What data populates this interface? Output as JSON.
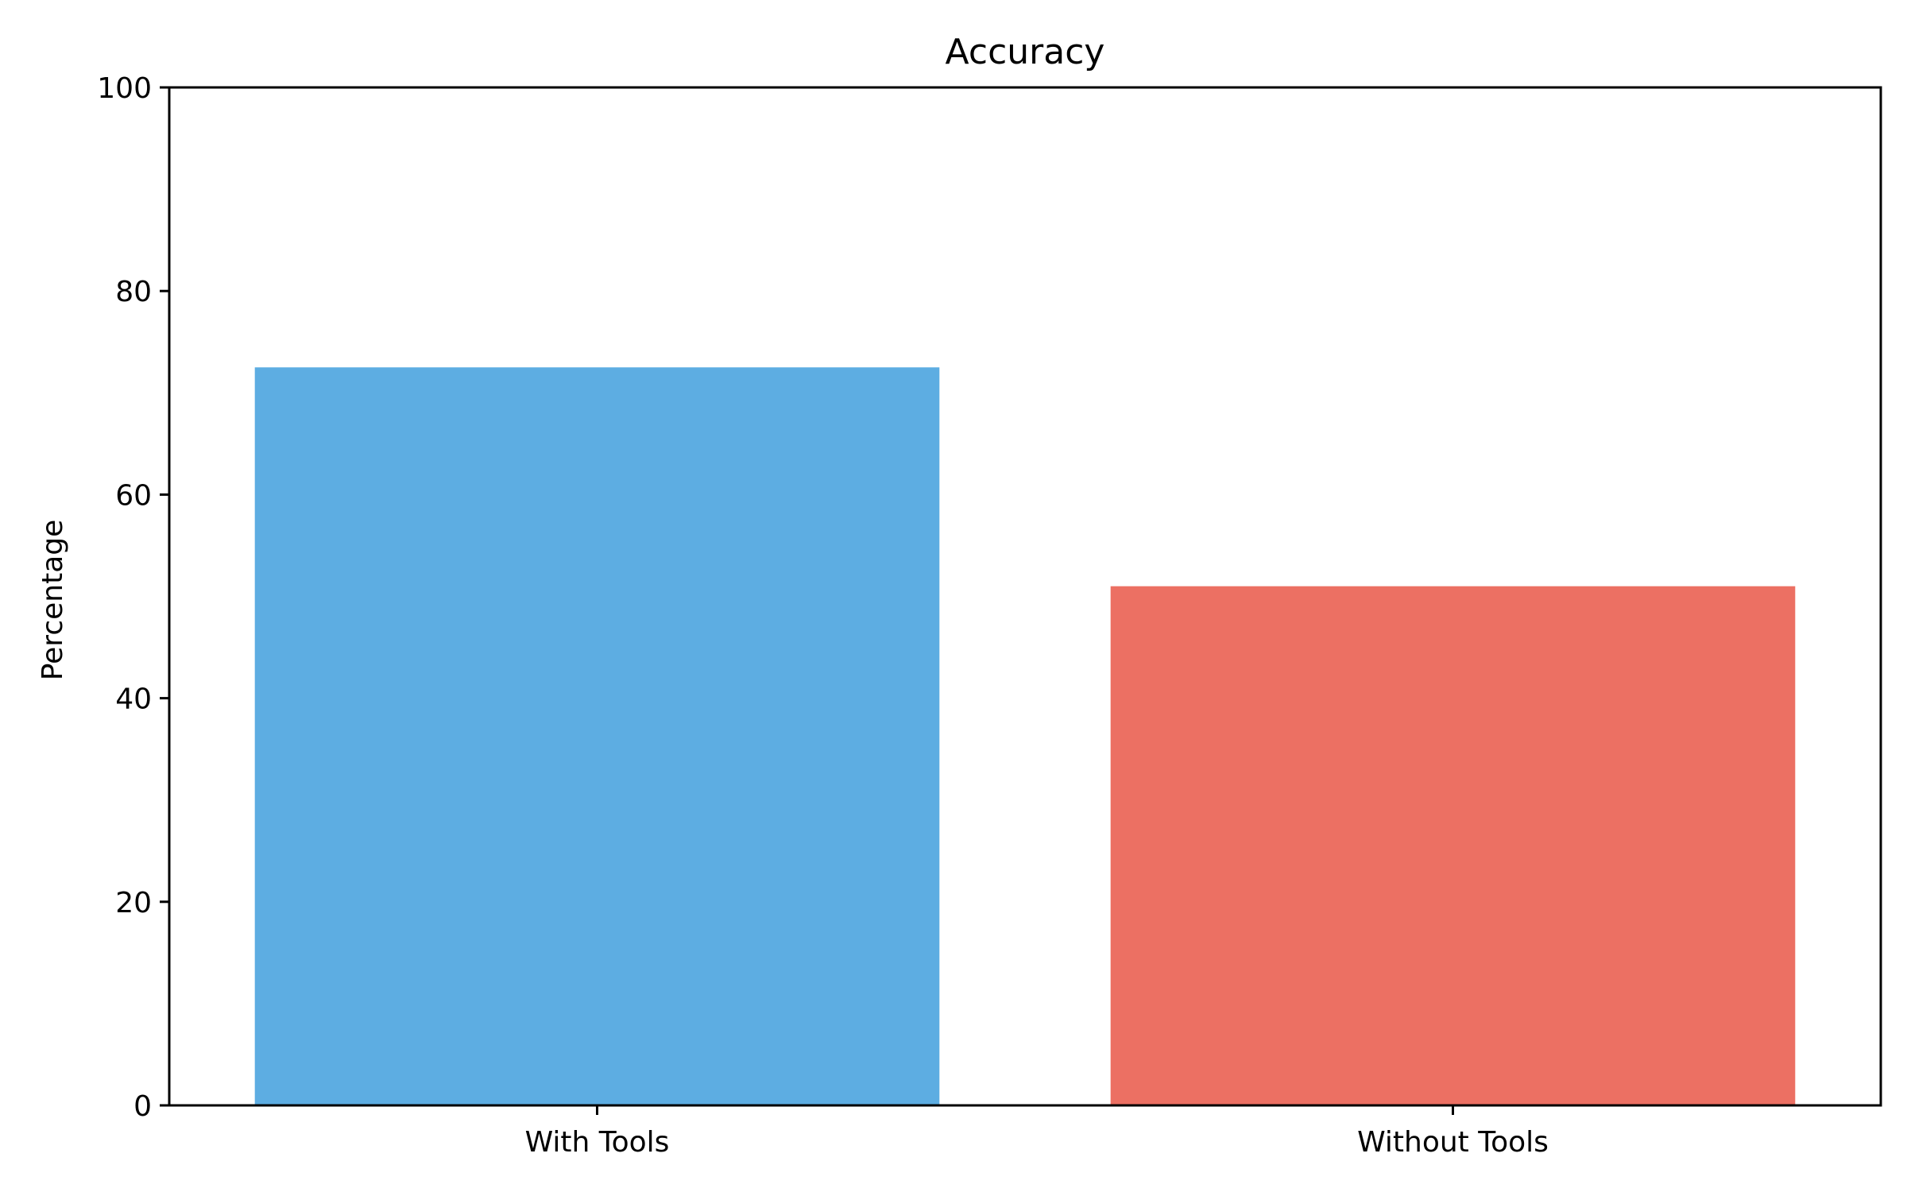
{
  "chart_data": {
    "type": "bar",
    "title": "Accuracy",
    "xlabel": "",
    "ylabel": "Percentage",
    "categories": [
      "With Tools",
      "Without Tools"
    ],
    "values": [
      72.5,
      51.0
    ],
    "colors": [
      "#5DADE2",
      "#EC7063"
    ],
    "ylim": [
      0,
      100
    ],
    "yticks": [
      0,
      20,
      40,
      60,
      80,
      100
    ],
    "grid": false,
    "legend": "none"
  }
}
